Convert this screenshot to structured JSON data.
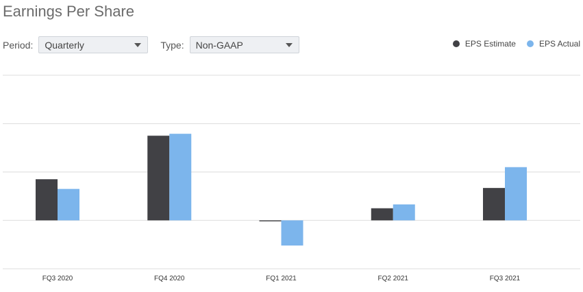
{
  "header": {
    "title": "Earnings Per Share"
  },
  "controls": {
    "period_label": "Period:",
    "period_value": "Quarterly",
    "type_label": "Type:",
    "type_value": "Non-GAAP"
  },
  "legend": {
    "items": [
      {
        "label": "EPS Estimate",
        "color": "#414145"
      },
      {
        "label": "EPS Actual",
        "color": "#7cb5ec"
      }
    ]
  },
  "chart_data": {
    "type": "bar",
    "categories": [
      "FQ3 2020",
      "FQ4 2020",
      "FQ1 2021",
      "FQ2 2021",
      "FQ3 2021"
    ],
    "series": [
      {
        "name": "EPS Estimate",
        "color": "#414145",
        "values": [
          0.85,
          1.75,
          -0.02,
          0.25,
          0.67
        ]
      },
      {
        "name": "EPS Actual",
        "color": "#7cb5ec",
        "values": [
          0.65,
          1.79,
          -0.52,
          0.33,
          1.1
        ]
      }
    ],
    "ylim": [
      -1,
      3
    ],
    "grid": true,
    "legend_position": "top-right"
  }
}
